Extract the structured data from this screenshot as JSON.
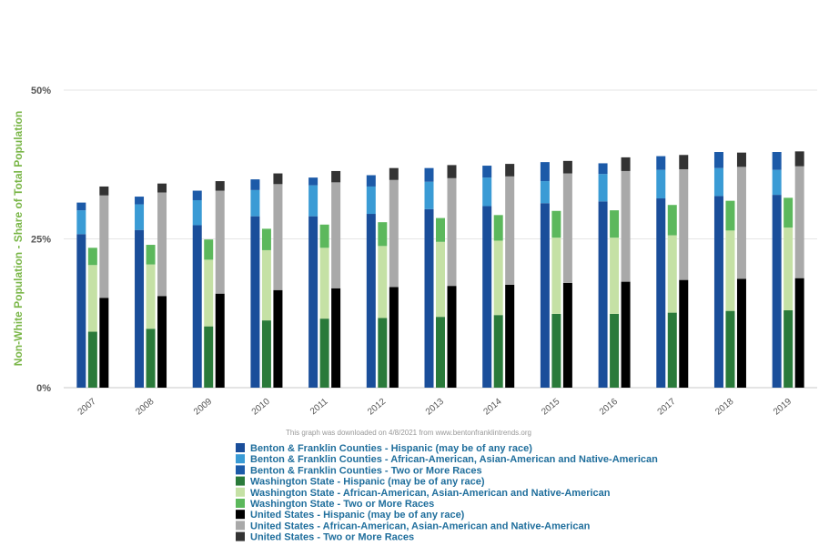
{
  "note": "This graph was downloaded on 4/8/2021 from www.bentonfranklintrends.org",
  "chart_data": {
    "type": "bar",
    "stacked": true,
    "ylabel": "Non-White Population - Share of Total Population",
    "ylim": [
      0,
      50
    ],
    "yticks": [
      {
        "value": 0,
        "label": "0%"
      },
      {
        "value": 25,
        "label": "25%"
      },
      {
        "value": 50,
        "label": "50%"
      }
    ],
    "grid": true,
    "legend_position": "bottom",
    "categories": [
      "2007",
      "2008",
      "2009",
      "2010",
      "2011",
      "2012",
      "2013",
      "2014",
      "2015",
      "2016",
      "2017",
      "2018",
      "2019"
    ],
    "groups": [
      {
        "name": "Benton & Franklin Counties",
        "series": [
          {
            "name": "Benton & Franklin Counties - Hispanic (may be of any race)",
            "color": "#1a4e9a",
            "values": [
              25.8,
              26.5,
              27.3,
              28.8,
              28.8,
              29.2,
              30.0,
              30.5,
              31.0,
              31.3,
              31.8,
              32.2,
              32.4
            ]
          },
          {
            "name": "Benton & Franklin Counties - African-American, Asian-American and Native-American",
            "color": "#3a9bd5",
            "values": [
              4.0,
              4.3,
              4.2,
              4.4,
              5.2,
              4.6,
              4.6,
              4.8,
              3.7,
              4.6,
              4.8,
              4.7,
              4.2
            ]
          },
          {
            "name": "Benton & Franklin Counties - Two or More Races",
            "color": "#1c5aa8",
            "values": [
              1.3,
              1.3,
              1.6,
              1.8,
              1.3,
              1.9,
              2.3,
              2.0,
              3.2,
              1.8,
              2.3,
              2.7,
              3.0
            ]
          }
        ]
      },
      {
        "name": "Washington State",
        "series": [
          {
            "name": "Washington State - Hispanic (may be of any race)",
            "color": "#2a7a3a",
            "values": [
              9.4,
              9.9,
              10.3,
              11.3,
              11.6,
              11.7,
              11.9,
              12.2,
              12.4,
              12.4,
              12.6,
              12.9,
              13.0
            ]
          },
          {
            "name": "Washington State - African-American, Asian-American and Native-American",
            "color": "#c5e1a5",
            "values": [
              11.2,
              10.8,
              11.2,
              11.8,
              11.9,
              12.1,
              12.6,
              12.5,
              12.8,
              12.8,
              13.0,
              13.5,
              13.9
            ]
          },
          {
            "name": "Washington State - Two or More Races",
            "color": "#5cb85c",
            "values": [
              2.9,
              3.3,
              3.4,
              3.6,
              3.9,
              4.0,
              4.0,
              4.3,
              4.5,
              4.6,
              5.1,
              5.0,
              5.0
            ]
          }
        ]
      },
      {
        "name": "United States",
        "series": [
          {
            "name": "United States - Hispanic (may be of any race)",
            "color": "#000000",
            "values": [
              15.1,
              15.4,
              15.8,
              16.4,
              16.7,
              16.9,
              17.1,
              17.3,
              17.6,
              17.8,
              18.1,
              18.3,
              18.4
            ]
          },
          {
            "name": "United States - African-American, Asian-American and Native-American",
            "color": "#a9a9a9",
            "values": [
              17.2,
              17.4,
              17.3,
              17.8,
              17.8,
              18.0,
              18.1,
              18.2,
              18.4,
              18.6,
              18.6,
              18.8,
              18.8
            ]
          },
          {
            "name": "United States - Two or More Races",
            "color": "#333333",
            "values": [
              1.5,
              1.5,
              1.6,
              1.8,
              1.9,
              2.0,
              2.2,
              2.1,
              2.1,
              2.3,
              2.4,
              2.4,
              2.5
            ]
          }
        ]
      }
    ]
  }
}
